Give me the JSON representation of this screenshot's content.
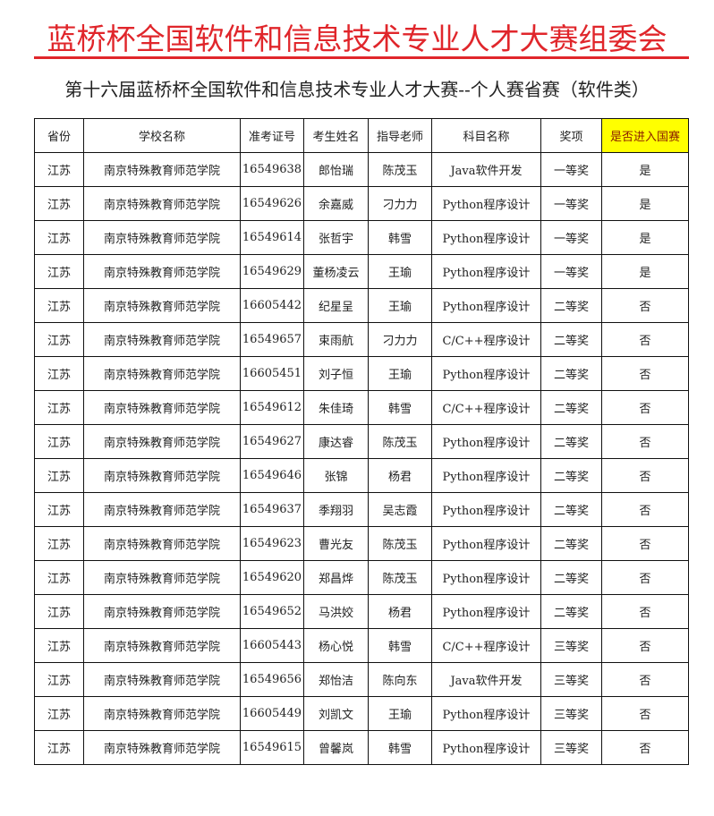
{
  "org_title": "蓝桥杯全国软件和信息技术专业人才大赛组委会",
  "subtitle": "第十六届蓝桥杯全国软件和信息技术专业人才大赛--个人赛省赛（软件类）",
  "highlight_color": "#ffff00",
  "title_color": "#e0262b",
  "columns": [
    "省份",
    "学校名称",
    "准考证号",
    "考生姓名",
    "指导老师",
    "科目名称",
    "奖项",
    "是否进入国赛"
  ],
  "rows": [
    [
      "江苏",
      "南京特殊教育师范学院",
      "16549638",
      "郎怡瑞",
      "陈茂玉",
      "Java软件开发",
      "一等奖",
      "是"
    ],
    [
      "江苏",
      "南京特殊教育师范学院",
      "16549626",
      "余嘉威",
      "刁力力",
      "Python程序设计",
      "一等奖",
      "是"
    ],
    [
      "江苏",
      "南京特殊教育师范学院",
      "16549614",
      "张哲宇",
      "韩雪",
      "Python程序设计",
      "一等奖",
      "是"
    ],
    [
      "江苏",
      "南京特殊教育师范学院",
      "16549629",
      "董杨凌云",
      "王瑜",
      "Python程序设计",
      "一等奖",
      "是"
    ],
    [
      "江苏",
      "南京特殊教育师范学院",
      "16605442",
      "纪星呈",
      "王瑜",
      "Python程序设计",
      "二等奖",
      "否"
    ],
    [
      "江苏",
      "南京特殊教育师范学院",
      "16549657",
      "束雨航",
      "刁力力",
      "C/C++程序设计",
      "二等奖",
      "否"
    ],
    [
      "江苏",
      "南京特殊教育师范学院",
      "16605451",
      "刘子恒",
      "王瑜",
      "Python程序设计",
      "二等奖",
      "否"
    ],
    [
      "江苏",
      "南京特殊教育师范学院",
      "16549612",
      "朱佳琦",
      "韩雪",
      "C/C++程序设计",
      "二等奖",
      "否"
    ],
    [
      "江苏",
      "南京特殊教育师范学院",
      "16549627",
      "康达睿",
      "陈茂玉",
      "Python程序设计",
      "二等奖",
      "否"
    ],
    [
      "江苏",
      "南京特殊教育师范学院",
      "16549646",
      "张锦",
      "杨君",
      "Python程序设计",
      "二等奖",
      "否"
    ],
    [
      "江苏",
      "南京特殊教育师范学院",
      "16549637",
      "季翔羽",
      "吴志霞",
      "Python程序设计",
      "二等奖",
      "否"
    ],
    [
      "江苏",
      "南京特殊教育师范学院",
      "16549623",
      "曹光友",
      "陈茂玉",
      "Python程序设计",
      "二等奖",
      "否"
    ],
    [
      "江苏",
      "南京特殊教育师范学院",
      "16549620",
      "郑昌烨",
      "陈茂玉",
      "Python程序设计",
      "二等奖",
      "否"
    ],
    [
      "江苏",
      "南京特殊教育师范学院",
      "16549652",
      "马洪姣",
      "杨君",
      "Python程序设计",
      "二等奖",
      "否"
    ],
    [
      "江苏",
      "南京特殊教育师范学院",
      "16605443",
      "杨心悦",
      "韩雪",
      "C/C++程序设计",
      "三等奖",
      "否"
    ],
    [
      "江苏",
      "南京特殊教育师范学院",
      "16549656",
      "郑怡洁",
      "陈向东",
      "Java软件开发",
      "三等奖",
      "否"
    ],
    [
      "江苏",
      "南京特殊教育师范学院",
      "16605449",
      "刘凯文",
      "王瑜",
      "Python程序设计",
      "三等奖",
      "否"
    ],
    [
      "江苏",
      "南京特殊教育师范学院",
      "16549615",
      "曾馨岚",
      "韩雪",
      "Python程序设计",
      "三等奖",
      "否"
    ]
  ]
}
